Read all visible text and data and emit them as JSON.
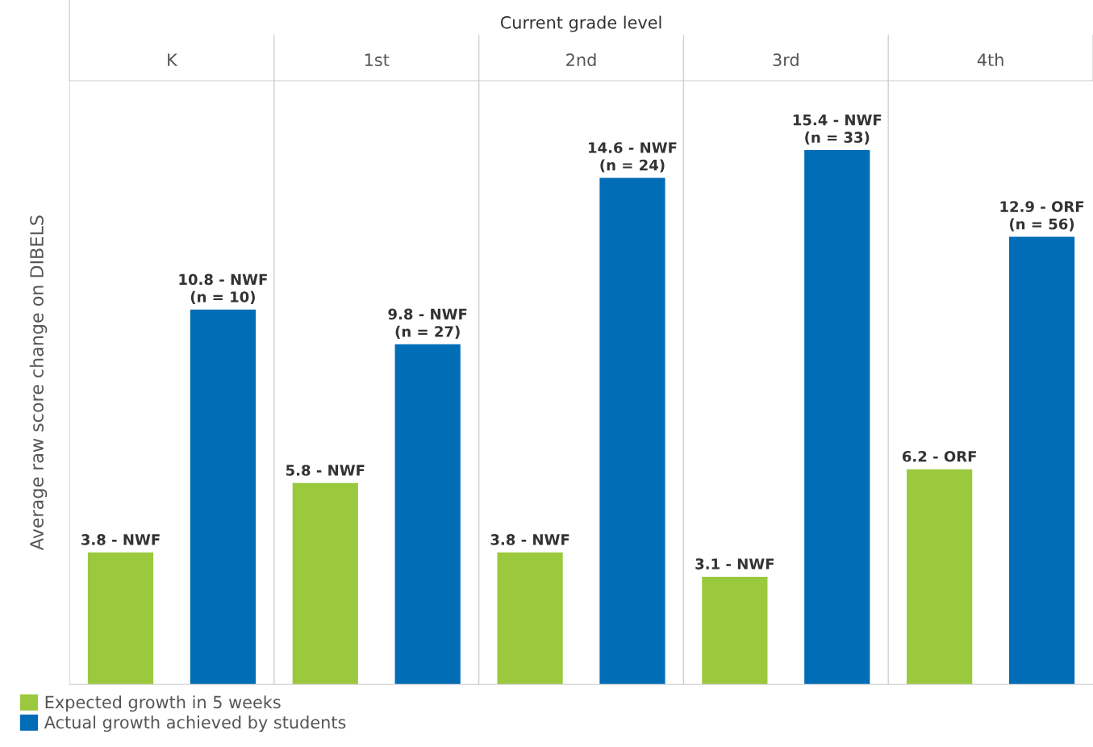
{
  "chart_data": {
    "type": "bar",
    "xlabel": "Current grade level",
    "ylabel": "Average raw score change on DIBELS",
    "categories": [
      "K",
      "1st",
      "2nd",
      "3rd",
      "4th"
    ],
    "series": [
      {
        "name": "Expected growth in 5 weeks",
        "color": "#9bc93e",
        "values": [
          3.8,
          5.8,
          3.8,
          3.1,
          6.2
        ],
        "value_labels": [
          "3.8 - NWF",
          "5.8 - NWF",
          "3.8 - NWF",
          "3.1 - NWF",
          "6.2 - ORF"
        ]
      },
      {
        "name": "Actual growth achieved by students",
        "color": "#006db6",
        "values": [
          10.8,
          9.8,
          14.6,
          15.4,
          12.9
        ],
        "value_labels": [
          "10.8 - NWF\n(n = 10)",
          "9.8 - NWF\n(n = 27)",
          "14.6 - NWF\n(n = 24)",
          "15.4 - NWF\n(n = 33)",
          "12.9 - ORF\n(n = 56)"
        ]
      }
    ],
    "legend": "bottom left"
  }
}
